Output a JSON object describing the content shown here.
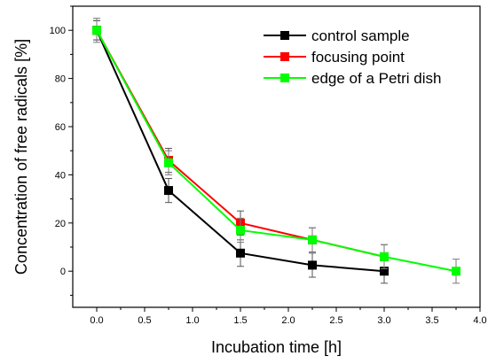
{
  "chart_data": {
    "type": "line",
    "xlabel": "Incubation time [h]",
    "ylabel": "Concentration of free radicals [%]",
    "xlim": [
      -0.25,
      4.0
    ],
    "ylim": [
      -15,
      110
    ],
    "xticks": [
      0.0,
      0.5,
      1.0,
      1.5,
      2.0,
      2.5,
      3.0,
      3.5,
      4.0
    ],
    "xtick_labels": [
      "0.0",
      "0.5",
      "1.0",
      "1.5",
      "2.0",
      "2.5",
      "3.0",
      "3.5",
      "4.0"
    ],
    "yticks": [
      0,
      20,
      40,
      60,
      80,
      100
    ],
    "ytick_labels": [
      "0",
      "20",
      "40",
      "60",
      "80",
      "100"
    ],
    "grid": false,
    "legend_position": "top-right",
    "series": [
      {
        "name": "control sample",
        "color": "#000000",
        "x": [
          0.0,
          0.75,
          1.5,
          2.25,
          3.0
        ],
        "y": [
          100,
          33.5,
          7.5,
          2.5,
          0
        ],
        "err": [
          4,
          5,
          5.5,
          5,
          5
        ]
      },
      {
        "name": "focusing point",
        "color": "#ff0000",
        "x": [
          0.0,
          0.75,
          1.5,
          2.25,
          3.0
        ],
        "y": [
          100,
          46,
          20,
          13,
          6
        ],
        "err": [
          4,
          5,
          5,
          5,
          5
        ]
      },
      {
        "name": "edge of a Petri dish",
        "color": "#00ff00",
        "x": [
          0.0,
          0.75,
          1.5,
          2.25,
          3.0,
          3.75
        ],
        "y": [
          100,
          45,
          17,
          13,
          6,
          0
        ],
        "err": [
          5,
          5,
          5,
          5,
          5,
          5
        ]
      }
    ]
  }
}
